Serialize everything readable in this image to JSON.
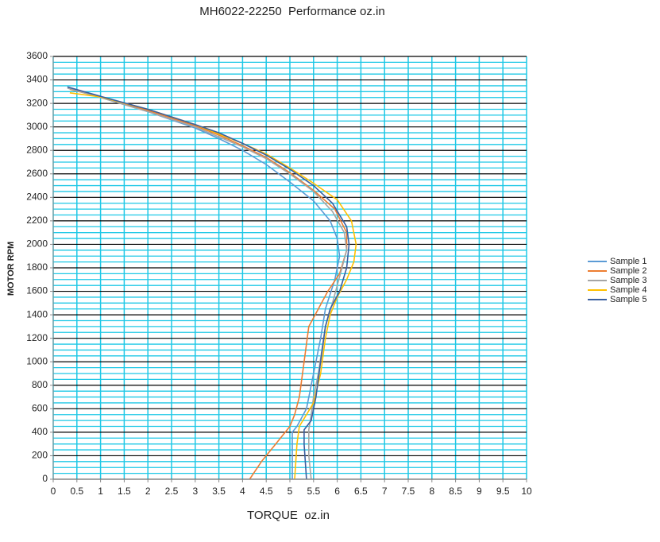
{
  "chart_data": {
    "type": "line",
    "title": "MH6022-22250  Performance oz.in",
    "x_label": "TORQUE  oz.in",
    "y_label": "MOTOR RPM",
    "xlim": [
      0,
      10
    ],
    "ylim": [
      0,
      3600
    ],
    "xticks": [
      0,
      0.5,
      1,
      1.5,
      2,
      2.5,
      3,
      3.5,
      4,
      4.5,
      5,
      5.5,
      6,
      6.5,
      7,
      7.5,
      8,
      8.5,
      9,
      9.5,
      10
    ],
    "yticks": [
      0,
      200,
      400,
      600,
      800,
      1000,
      1200,
      1400,
      1600,
      1800,
      2000,
      2200,
      2400,
      2600,
      2800,
      3000,
      3200,
      3400,
      3600
    ],
    "y_minor_ticks": [
      50,
      100,
      150,
      250,
      300,
      350,
      450,
      500,
      550,
      650,
      700,
      750,
      850,
      900,
      950,
      1050,
      1100,
      1150,
      1250,
      1300,
      1350,
      1450,
      1500,
      1550,
      1650,
      1700,
      1750,
      1850,
      1900,
      1950,
      2050,
      2100,
      2150,
      2250,
      2300,
      2350,
      2450,
      2500,
      2550,
      2650,
      2700,
      2750,
      2850,
      2900,
      2950,
      3050,
      3100,
      3150,
      3250,
      3300,
      3350,
      3450,
      3500,
      3550
    ],
    "grid": true,
    "grid_color": "#1ec8e6",
    "major_grid_color": "#000000",
    "legend": "right",
    "series": [
      {
        "name": "Sample 1",
        "color": "#5b9bd5",
        "x": [
          0.3,
          1,
          2,
          3,
          3.5,
          4,
          4.5,
          5,
          5.5,
          5.85,
          6,
          6.05,
          5.95,
          5.75,
          5.65,
          5.5,
          5.35,
          5.15,
          5.05,
          5.05,
          5.05
        ],
        "values": [
          3340,
          3250,
          3130,
          2990,
          2900,
          2800,
          2680,
          2530,
          2370,
          2200,
          2050,
          1900,
          1700,
          1450,
          1200,
          900,
          600,
          450,
          400,
          200,
          0
        ]
      },
      {
        "name": "Sample 2",
        "color": "#ed7d31",
        "x": [
          0.35,
          1,
          2,
          3,
          3.5,
          4,
          4.5,
          5,
          5.5,
          5.95,
          6.2,
          6.2,
          6.05,
          5.8,
          5.6,
          5.4,
          5.3,
          5.2,
          5.1,
          5.0,
          4.7,
          4.4,
          4.15
        ],
        "values": [
          3320,
          3255,
          3140,
          3010,
          2930,
          2840,
          2740,
          2610,
          2460,
          2300,
          2100,
          1950,
          1750,
          1600,
          1450,
          1300,
          1000,
          700,
          550,
          450,
          300,
          150,
          0
        ]
      },
      {
        "name": "Sample 3",
        "color": "#a5a5a5",
        "x": [
          0.3,
          1,
          2,
          3,
          4,
          4.5,
          5,
          5.5,
          5.9,
          6.15,
          6.2,
          6.1,
          5.9,
          5.75,
          5.6,
          5.5,
          5.45,
          5.4,
          5.4,
          5.45
        ],
        "values": [
          3330,
          3250,
          3130,
          3000,
          2830,
          2730,
          2600,
          2450,
          2280,
          2100,
          1950,
          1800,
          1500,
          1300,
          900,
          700,
          550,
          420,
          200,
          0
        ]
      },
      {
        "name": "Sample 4",
        "color": "#ffc000",
        "x": [
          0.35,
          1,
          2,
          3,
          4,
          4.5,
          5,
          5.5,
          6,
          6.3,
          6.4,
          6.35,
          6.2,
          6,
          5.85,
          5.75,
          5.65,
          5.5,
          5.35,
          5.2,
          5.15,
          5.1
        ],
        "values": [
          3290,
          3255,
          3150,
          3020,
          2860,
          2770,
          2650,
          2520,
          2380,
          2200,
          2000,
          1850,
          1700,
          1550,
          1400,
          1200,
          900,
          650,
          550,
          450,
          300,
          0
        ]
      },
      {
        "name": "Sample 5",
        "color": "#3a5fa0",
        "x": [
          0.3,
          1,
          2,
          3,
          3.5,
          4,
          4.5,
          5,
          5.5,
          5.9,
          6.2,
          6.25,
          6.2,
          6.05,
          5.85,
          5.75,
          5.65,
          5.55,
          5.45,
          5.3,
          5.3,
          5.35
        ],
        "values": [
          3340,
          3260,
          3150,
          3020,
          2950,
          2860,
          2760,
          2640,
          2500,
          2350,
          2150,
          2000,
          1800,
          1600,
          1450,
          1300,
          1000,
          700,
          500,
          420,
          300,
          0
        ]
      }
    ]
  }
}
